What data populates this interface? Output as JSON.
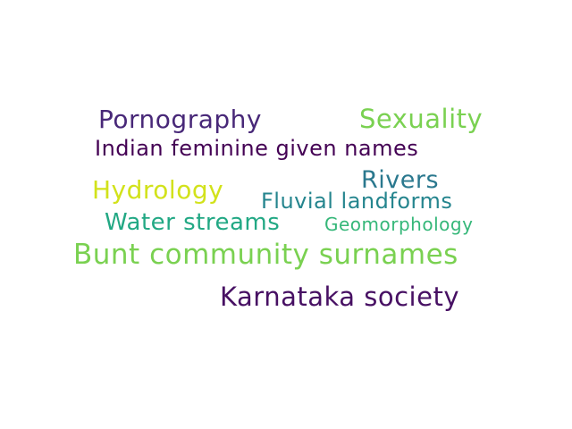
{
  "word_cloud": {
    "words": [
      {
        "text": "Pornography",
        "color": "#482878"
      },
      {
        "text": "Sexuality",
        "color": "#7ad151"
      },
      {
        "text": "Indian feminine given names",
        "color": "#440154"
      },
      {
        "text": "Rivers",
        "color": "#2a788e"
      },
      {
        "text": "Hydrology",
        "color": "#d2e21b"
      },
      {
        "text": "Fluvial landforms",
        "color": "#25858e"
      },
      {
        "text": "Water streams",
        "color": "#22a884"
      },
      {
        "text": "Geomorphology",
        "color": "#35b779"
      },
      {
        "text": "Bunt community surnames",
        "color": "#7ad151"
      },
      {
        "text": "Karnataka society",
        "color": "#471063"
      }
    ]
  }
}
